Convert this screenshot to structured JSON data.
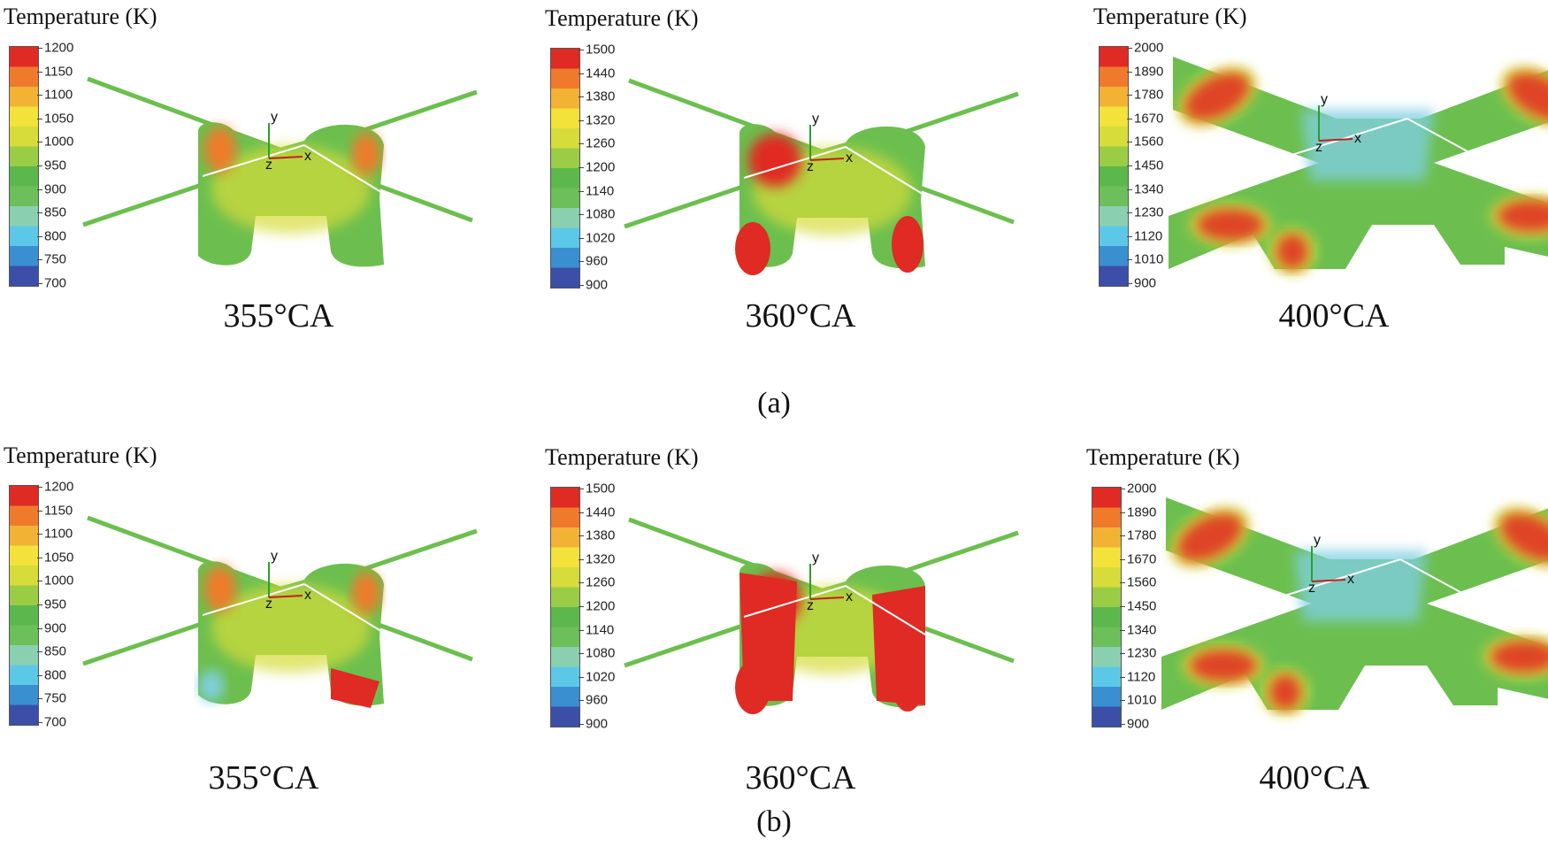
{
  "colors": {
    "scale": [
      "#3b4fa8",
      "#3a8fd0",
      "#5cc8e8",
      "#8ad0b0",
      "#6cbf5a",
      "#5cb84c",
      "#9bcc46",
      "#d6dc3a",
      "#f2e23a",
      "#f2b234",
      "#f07a2c",
      "#e02a24"
    ],
    "background": "#ffffff"
  },
  "rows": [
    {
      "label": "(a)",
      "panels": [
        {
          "title": "Temperature (K)",
          "caption": "355°CA",
          "ticks": [
            "1200",
            "1150",
            "1100",
            "1050",
            "1000",
            "950",
            "900",
            "850",
            "800",
            "750",
            "700"
          ],
          "axes": [
            "y",
            "x",
            "z"
          ]
        },
        {
          "title": "Temperature (K)",
          "caption": "360°CA",
          "ticks": [
            "1500",
            "1440",
            "1380",
            "1320",
            "1260",
            "1200",
            "1140",
            "1080",
            "1020",
            "960",
            "900"
          ],
          "axes": [
            "y",
            "x",
            "z"
          ]
        },
        {
          "title": "Temperature (K)",
          "caption": "400°CA",
          "ticks": [
            "2000",
            "1890",
            "1780",
            "1670",
            "1560",
            "1450",
            "1340",
            "1230",
            "1120",
            "1010",
            "900"
          ],
          "axes": [
            "y",
            "x",
            "z"
          ]
        }
      ]
    },
    {
      "label": "(b)",
      "panels": [
        {
          "title": "Temperature (K)",
          "caption": "355°CA",
          "ticks": [
            "1200",
            "1150",
            "1100",
            "1050",
            "1000",
            "950",
            "900",
            "850",
            "800",
            "750",
            "700"
          ],
          "axes": [
            "y",
            "x",
            "z"
          ]
        },
        {
          "title": "Temperature (K)",
          "caption": "360°CA",
          "ticks": [
            "1500",
            "1440",
            "1380",
            "1320",
            "1260",
            "1200",
            "1140",
            "1080",
            "1020",
            "960",
            "900"
          ],
          "axes": [
            "y",
            "x",
            "z"
          ]
        },
        {
          "title": "Temperature (K)",
          "caption": "400°CA",
          "ticks": [
            "2000",
            "1890",
            "1780",
            "1670",
            "1560",
            "1450",
            "1340",
            "1230",
            "1120",
            "1010",
            "900"
          ],
          "axes": [
            "y",
            "x",
            "z"
          ]
        }
      ]
    }
  ]
}
